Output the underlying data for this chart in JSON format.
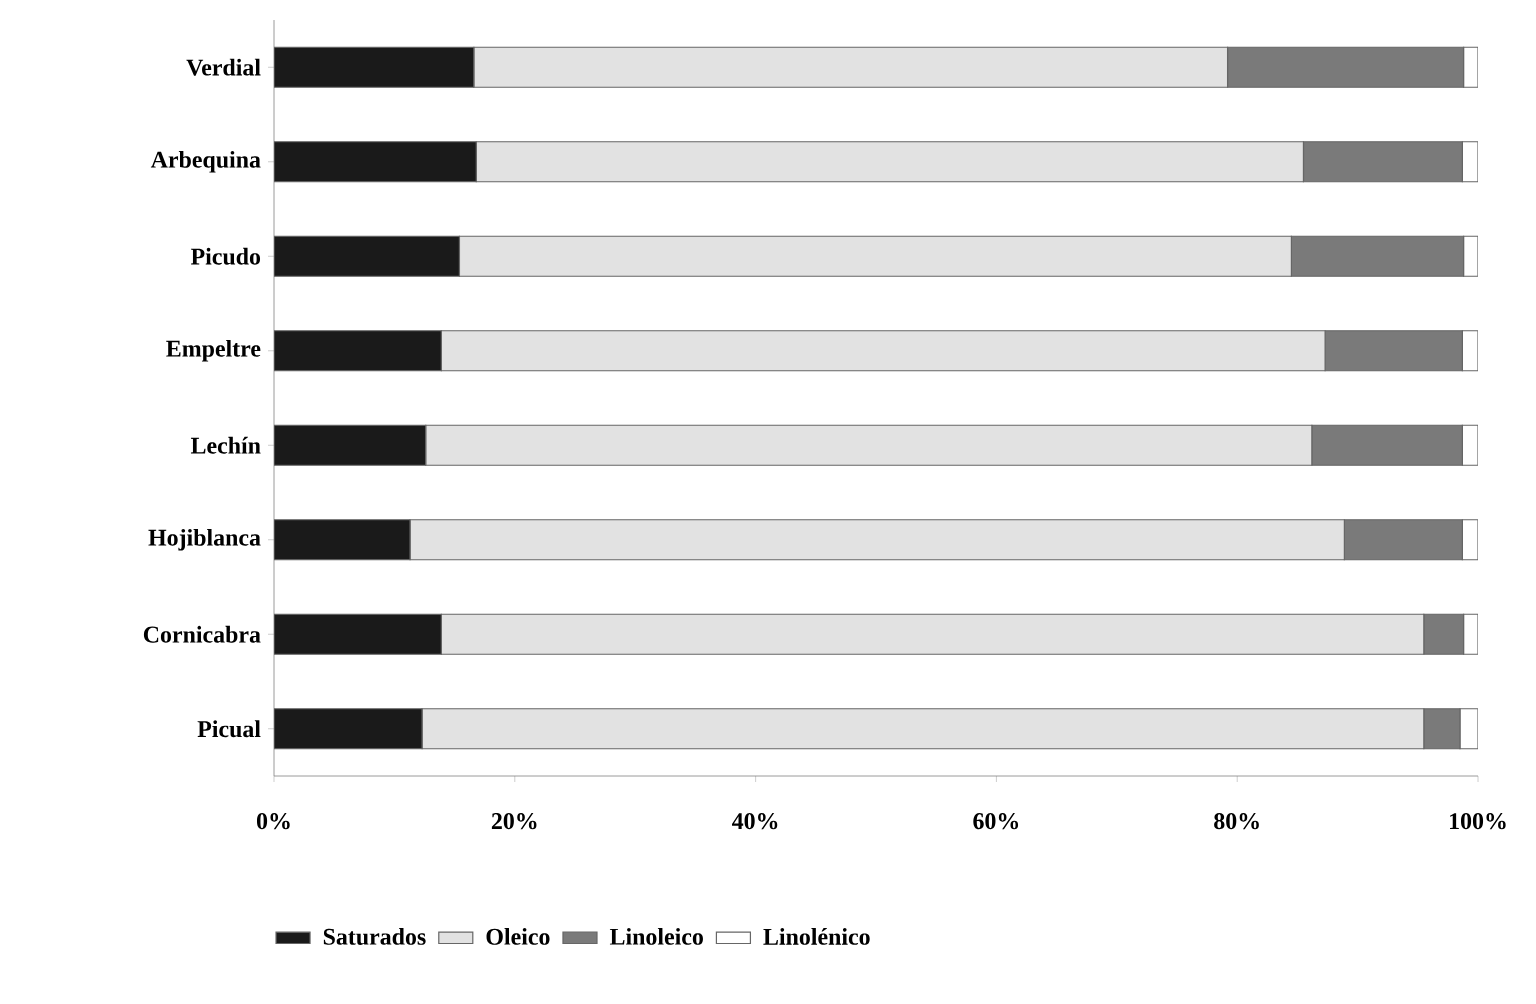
{
  "chart_data": {
    "type": "bar",
    "orientation": "horizontal",
    "stacked": true,
    "categories": [
      "Verdial",
      "Arbequina",
      "Picudo",
      "Empeltre",
      "Lechín",
      "Hojiblanca",
      "Cornicabra",
      "Picual"
    ],
    "series": [
      {
        "name": "Saturados",
        "color": "#1a1a1a",
        "values": [
          16.6,
          16.8,
          15.4,
          13.9,
          12.6,
          11.3,
          13.9,
          12.3
        ]
      },
      {
        "name": "Oleico",
        "color": "#e2e2e2",
        "values": [
          62.6,
          68.7,
          69.1,
          73.4,
          73.6,
          77.6,
          81.6,
          83.2
        ]
      },
      {
        "name": "Linoleico",
        "color": "#7a7a7a",
        "values": [
          19.6,
          13.2,
          14.3,
          11.4,
          12.5,
          9.8,
          3.3,
          3.0
        ]
      },
      {
        "name": "Linolénico",
        "color": "#ffffff",
        "values": [
          1.2,
          1.3,
          1.2,
          1.3,
          1.3,
          1.3,
          1.2,
          1.5
        ]
      }
    ],
    "xlim": [
      0,
      100
    ],
    "xticks": [
      {
        "value": 0,
        "label": "0%"
      },
      {
        "value": 20,
        "label": "20%"
      },
      {
        "value": 40,
        "label": "40%"
      },
      {
        "value": 60,
        "label": "60%"
      },
      {
        "value": 80,
        "label": "80%"
      },
      {
        "value": 100,
        "label": "100%"
      }
    ],
    "legend": "bottom",
    "grid": false
  }
}
